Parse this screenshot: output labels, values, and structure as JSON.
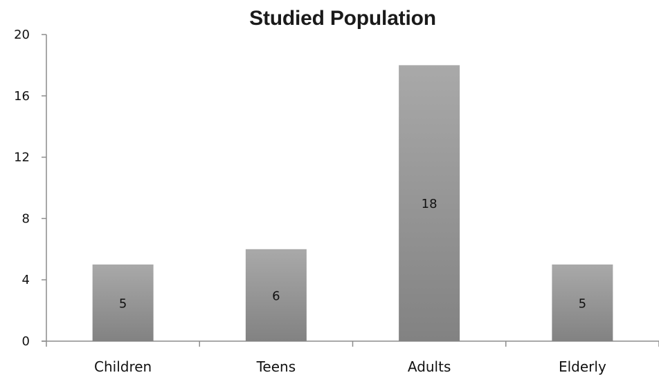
{
  "chart_data": {
    "type": "bar",
    "title": "Studied Population",
    "xlabel": "",
    "ylabel": "",
    "categories": [
      "Children",
      "Teens",
      "Adults",
      "Elderly"
    ],
    "values": [
      5,
      6,
      18,
      5
    ],
    "data_labels": [
      "5",
      "6",
      "18",
      "5"
    ],
    "ylim": [
      0,
      20
    ],
    "yticks": [
      0,
      4,
      8,
      12,
      16,
      20
    ],
    "ytick_labels": [
      "0",
      "4",
      "8",
      "12",
      "16",
      "20"
    ],
    "grid": false,
    "legend": "none",
    "colors": {
      "bar_top": "#a9a9a9",
      "bar_bottom": "#828282",
      "axis": "#8c8c8c",
      "text": "#111111"
    }
  }
}
